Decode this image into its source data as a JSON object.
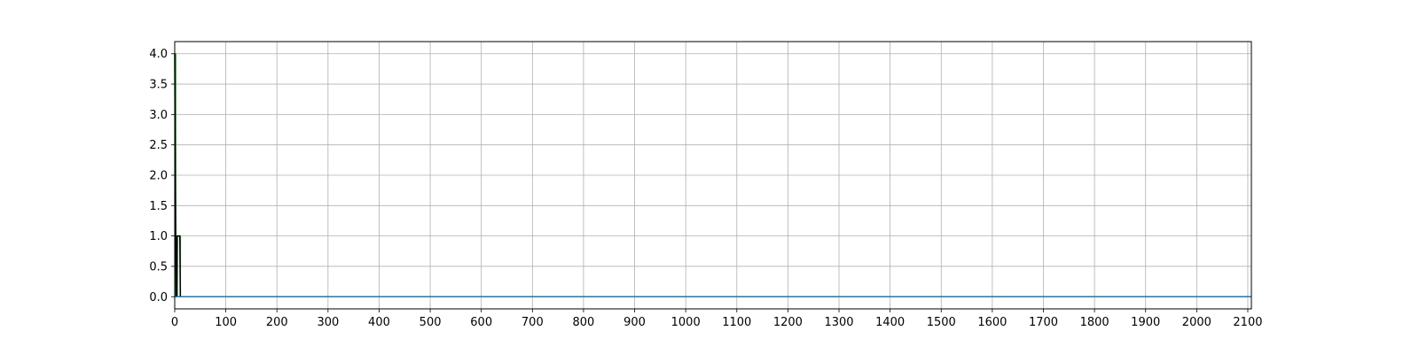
{
  "chart_data": {
    "type": "line",
    "title": "",
    "xlabel": "",
    "ylabel": "",
    "xlim": [
      0,
      2107
    ],
    "ylim": [
      -0.2,
      4.2
    ],
    "grid": true,
    "legend": "none",
    "x_ticks": [
      0,
      100,
      200,
      300,
      400,
      500,
      600,
      700,
      800,
      900,
      1000,
      1100,
      1200,
      1300,
      1400,
      1500,
      1600,
      1700,
      1800,
      1900,
      2000,
      2100
    ],
    "y_ticks": [
      0.0,
      0.5,
      1.0,
      1.5,
      2.0,
      2.5,
      3.0,
      3.5,
      4.0
    ],
    "x_tick_labels": [
      "0",
      "100",
      "200",
      "300",
      "400",
      "500",
      "600",
      "700",
      "800",
      "900",
      "1000",
      "1100",
      "1200",
      "1300",
      "1400",
      "1500",
      "1600",
      "1700",
      "1800",
      "1900",
      "2000",
      "2100"
    ],
    "y_tick_labels": [
      "0.0",
      "0.5",
      "1.0",
      "1.5",
      "2.0",
      "2.5",
      "3.0",
      "3.5",
      "4.0"
    ],
    "series": [
      {
        "color": "#2ca02c",
        "style": "step",
        "x": [
          0,
          1,
          2,
          3,
          4,
          5,
          6,
          7,
          8,
          9,
          10,
          11,
          12,
          2107
        ],
        "y": [
          4,
          4,
          0,
          0,
          0,
          1,
          1,
          1,
          1,
          1,
          1,
          0,
          0,
          0
        ]
      },
      {
        "color": "#000000",
        "style": "line",
        "x": [
          0,
          1,
          2,
          3,
          4,
          5,
          6,
          7,
          8,
          9,
          10,
          11,
          12,
          2107
        ],
        "y": [
          4,
          2,
          1,
          0,
          0,
          1,
          1,
          1,
          1,
          1,
          1,
          0,
          0,
          0
        ]
      },
      {
        "color": "#1f77b4",
        "style": "line",
        "x": [
          0,
          12,
          2107
        ],
        "y": [
          0,
          0,
          0
        ]
      }
    ]
  }
}
